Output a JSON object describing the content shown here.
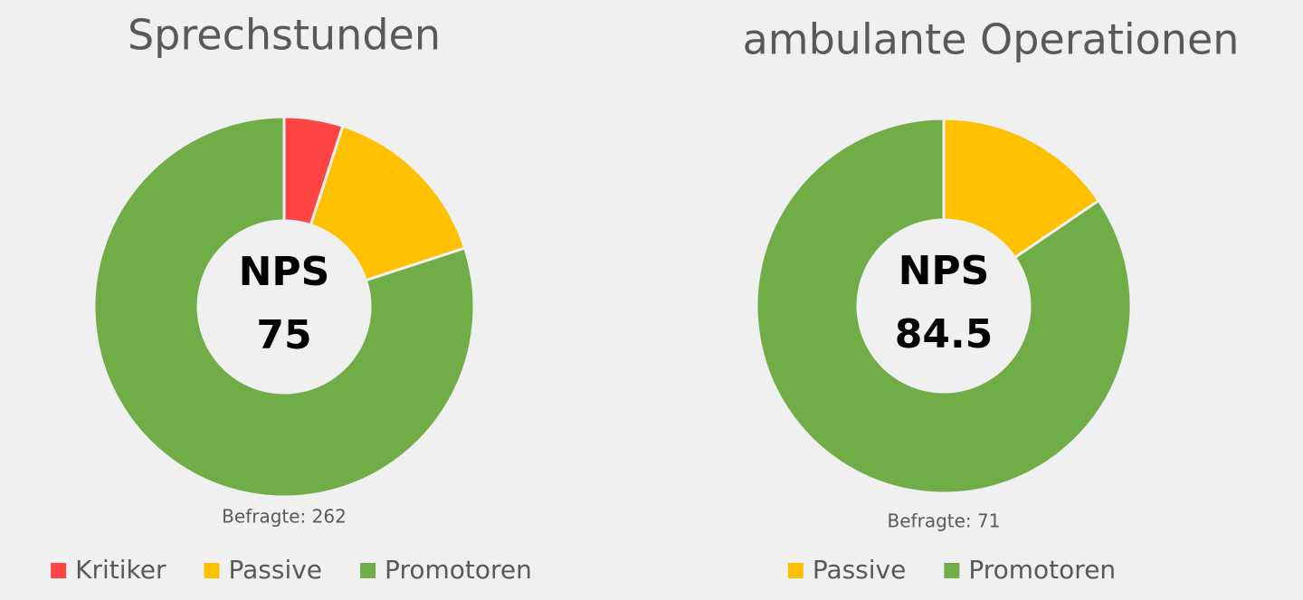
{
  "chart_data": [
    {
      "type": "donut",
      "title": "Sprechstunden",
      "center_label": "NPS",
      "center_value": 75,
      "note": "Befragte: 262",
      "categories": [
        "Kritiker",
        "Passive",
        "Promotoren"
      ],
      "values": [
        5,
        15,
        80
      ],
      "colors": [
        "#ff4444",
        "#ffc000",
        "#70ad47"
      ],
      "legend": "bottom"
    },
    {
      "type": "donut",
      "title": "ambulante Operationen",
      "center_label": "NPS",
      "center_value": 84.5,
      "note": "Befragte: 71",
      "categories": [
        "Passive",
        "Promotoren"
      ],
      "values": [
        15.5,
        84.5
      ],
      "colors": [
        "#ffc000",
        "#70ad47"
      ],
      "legend": "bottom"
    }
  ]
}
